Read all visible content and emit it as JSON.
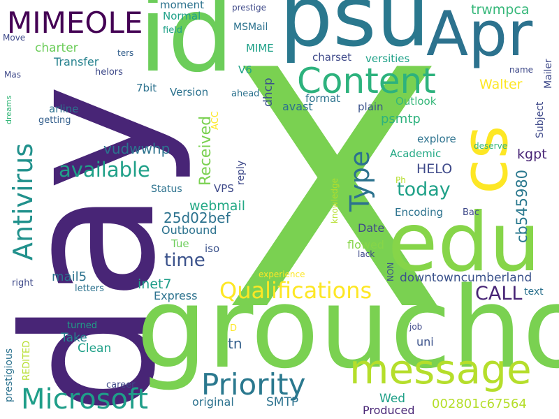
{
  "words": [
    {
      "text": "X",
      "color": "#7ad151"
    },
    {
      "text": "day",
      "color": "#482576"
    },
    {
      "text": "groucho",
      "color": "#7ad151"
    },
    {
      "text": "psu",
      "color": "#2a788e"
    },
    {
      "text": "id",
      "color": "#6ccd5a"
    },
    {
      "text": "Apr",
      "color": "#2c728e"
    },
    {
      "text": "edu",
      "color": "#86d549"
    },
    {
      "text": "cs",
      "color": "#fde725"
    },
    {
      "text": "message",
      "color": "#b5de2b"
    },
    {
      "text": "Content",
      "color": "#2db27d"
    },
    {
      "text": "Priority",
      "color": "#2a788e"
    },
    {
      "text": "Microsoft",
      "color": "#1f9e89"
    },
    {
      "text": "MIMEOLE",
      "color": "#440154"
    },
    {
      "text": "Antivirus",
      "color": "#21918c"
    },
    {
      "text": "Type",
      "color": "#2c728e"
    },
    {
      "text": "Qualifications",
      "color": "#fde725"
    },
    {
      "text": "available",
      "color": "#1fa088"
    },
    {
      "text": "time",
      "color": "#3b528b"
    },
    {
      "text": "today",
      "color": "#1fa188"
    },
    {
      "text": "CALL",
      "color": "#482576"
    },
    {
      "text": "Received",
      "color": "#7ad151"
    },
    {
      "text": "cb545980",
      "color": "#2a788e"
    },
    {
      "text": "002801c67564",
      "color": "#b5de2b"
    },
    {
      "text": "downtowncumberland",
      "color": "#3b528b"
    },
    {
      "text": "Walter",
      "color": "#fde725"
    },
    {
      "text": "trwmpca",
      "color": "#35b779"
    },
    {
      "text": "25d02bef",
      "color": "#2c728e"
    },
    {
      "text": "vudwwhp",
      "color": "#2c728e"
    },
    {
      "text": "webmail",
      "color": "#22a884"
    },
    {
      "text": "kgpt",
      "color": "#482576"
    },
    {
      "text": "HELO",
      "color": "#3e4989"
    },
    {
      "text": "psmtp",
      "color": "#2db27d"
    },
    {
      "text": "mail5",
      "color": "#2c728e"
    },
    {
      "text": "inet7",
      "color": "#1f9e89"
    },
    {
      "text": "tn",
      "color": "#35608d"
    },
    {
      "text": "SMTP",
      "color": "#2c728e"
    },
    {
      "text": "Wed",
      "color": "#1fa088"
    },
    {
      "text": "Produced",
      "color": "#482576"
    },
    {
      "text": "original",
      "color": "#2c728e"
    },
    {
      "text": "Clean",
      "color": "#1fa088"
    },
    {
      "text": "Take",
      "color": "#26828e"
    },
    {
      "text": "uni",
      "color": "#3b528b"
    },
    {
      "text": "Express",
      "color": "#2c728e"
    },
    {
      "text": "Outbound",
      "color": "#2c728e"
    },
    {
      "text": "Tue",
      "color": "#6ccd5a"
    },
    {
      "text": "iso",
      "color": "#3b528b"
    },
    {
      "text": "flowed",
      "color": "#86d549"
    },
    {
      "text": "Date",
      "color": "#3e4989"
    },
    {
      "text": "Encoding",
      "color": "#2c728e"
    },
    {
      "text": "Bac",
      "color": "#3e4989"
    },
    {
      "text": "explore",
      "color": "#2c728e"
    },
    {
      "text": "Academic",
      "color": "#22a884"
    },
    {
      "text": "Outlook",
      "color": "#35b779"
    },
    {
      "text": "plain",
      "color": "#3b528b"
    },
    {
      "text": "format",
      "color": "#2c728e"
    },
    {
      "text": "avast",
      "color": "#2c728e"
    },
    {
      "text": "charset",
      "color": "#3e4989"
    },
    {
      "text": "versities",
      "color": "#1fa188"
    },
    {
      "text": "Version",
      "color": "#2c728e"
    },
    {
      "text": "ahead",
      "color": "#2c728e"
    },
    {
      "text": "Normal",
      "color": "#1fa188"
    },
    {
      "text": "moment",
      "color": "#2c728e"
    },
    {
      "text": "field",
      "color": "#1fa188"
    },
    {
      "text": "prestige",
      "color": "#3e4989"
    },
    {
      "text": "MSMail",
      "color": "#2c728e"
    },
    {
      "text": "MIME",
      "color": "#1fa188"
    },
    {
      "text": "V6",
      "color": "#1fa188"
    },
    {
      "text": "charter",
      "color": "#6ccd5a"
    },
    {
      "text": "Transfer",
      "color": "#26828e"
    },
    {
      "text": "helors",
      "color": "#3e4989"
    },
    {
      "text": "7bit",
      "color": "#2c728e"
    },
    {
      "text": "arline",
      "color": "#2c728e"
    },
    {
      "text": "getting",
      "color": "#35608d"
    },
    {
      "text": "ters",
      "color": "#35608d"
    },
    {
      "text": "Move",
      "color": "#3e4989"
    },
    {
      "text": "Mas",
      "color": "#3e4989"
    },
    {
      "text": "name",
      "color": "#3e4989"
    },
    {
      "text": "Mailer",
      "color": "#3e4989"
    },
    {
      "text": "Subject",
      "color": "#3e4989"
    },
    {
      "text": "deserve",
      "color": "#35b779"
    },
    {
      "text": "Ph",
      "color": "#b5de2b"
    },
    {
      "text": "knowledge",
      "color": "#b5de2b"
    },
    {
      "text": "VPS",
      "color": "#3e4989"
    },
    {
      "text": "reply",
      "color": "#3e4989"
    },
    {
      "text": "Status",
      "color": "#2c728e"
    },
    {
      "text": "dhcp",
      "color": "#3b528b"
    },
    {
      "text": "ACC",
      "color": "#fde725"
    },
    {
      "text": "dreams",
      "color": "#35b779"
    },
    {
      "text": "right",
      "color": "#3e4989"
    },
    {
      "text": "letters",
      "color": "#2c728e"
    },
    {
      "text": "experience",
      "color": "#fde725"
    },
    {
      "text": "lack",
      "color": "#3e4989"
    },
    {
      "text": "NON",
      "color": "#3b528b"
    },
    {
      "text": "text",
      "color": "#2c728e"
    },
    {
      "text": "job",
      "color": "#3e4989"
    },
    {
      "text": "D",
      "color": "#fde725"
    },
    {
      "text": "turned",
      "color": "#1fa188"
    },
    {
      "text": "REDITED",
      "color": "#b5de2b"
    },
    {
      "text": "prestigious",
      "color": "#2c728e"
    },
    {
      "text": "career",
      "color": "#3e4989"
    }
  ]
}
